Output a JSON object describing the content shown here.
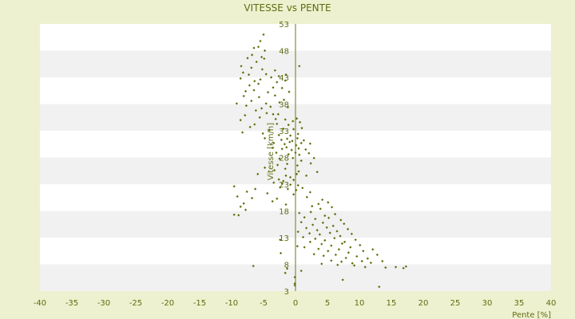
{
  "colors": {
    "page_background": "#eef1cf",
    "plot_band_light": "#ffffff",
    "plot_band_dark": "#f1f1f1",
    "text": "#5f6b12",
    "axis_line": "#6b7a10",
    "marker": "#5f6e0c"
  },
  "chart_data": {
    "type": "scatter",
    "title": "VITESSE vs PENTE",
    "xlabel": "Pente [%]",
    "ylabel": "Vitesse [km/h]",
    "xlim": [
      -40,
      40
    ],
    "ylim": [
      3,
      53
    ],
    "x_ticks": [
      -40,
      -35,
      -30,
      -25,
      -20,
      -15,
      -10,
      -5,
      0,
      5,
      10,
      15,
      20,
      25,
      30,
      35,
      40
    ],
    "y_ticks": [
      3,
      8,
      13,
      18,
      23,
      28,
      33,
      38,
      43,
      48,
      53
    ],
    "x_tick_labels": [
      "-40",
      "-35",
      "-30",
      "-25",
      "-20",
      "-15",
      "-10",
      "-5",
      "0",
      "5",
      "10",
      "15",
      "20",
      "25",
      "30",
      "35",
      "40"
    ],
    "y_tick_labels": [
      "3",
      "8",
      "13",
      "18",
      "23",
      "28",
      "33",
      "38",
      "43",
      "48",
      "53"
    ],
    "grid": "horizontal alternating bands",
    "legend": "none",
    "marker": "small diamond",
    "series": [
      {
        "points": [
          [
            -5,
            51
          ],
          [
            -5.5,
            49.8
          ],
          [
            -6.5,
            48.5
          ],
          [
            -5.8,
            48.7
          ],
          [
            -4.8,
            48
          ],
          [
            -6.8,
            47.2
          ],
          [
            -7.5,
            46.6
          ],
          [
            -5.3,
            46.8
          ],
          [
            -4.9,
            46.5
          ],
          [
            -6.1,
            45.9
          ],
          [
            -8.5,
            45.1
          ],
          [
            -6.9,
            44.8
          ],
          [
            -5.2,
            44.5
          ],
          [
            -3.2,
            44.3
          ],
          [
            0.6,
            45.1
          ],
          [
            -8.2,
            43.9
          ],
          [
            -7.3,
            43.5
          ],
          [
            -4.6,
            43.6
          ],
          [
            -3.8,
            43
          ],
          [
            -2.6,
            43.2
          ],
          [
            -1.5,
            43.5
          ],
          [
            -8.6,
            42.8
          ],
          [
            -6.4,
            42.3
          ],
          [
            -5.5,
            42.6
          ],
          [
            -2.9,
            42.1
          ],
          [
            -1.6,
            42.4
          ],
          [
            -7.2,
            41.5
          ],
          [
            -5.8,
            41.8
          ],
          [
            -3.5,
            41.1
          ],
          [
            -2.1,
            41
          ],
          [
            -7.8,
            40.4
          ],
          [
            -6.5,
            40.6
          ],
          [
            -4.3,
            40.2
          ],
          [
            -1,
            40.3
          ],
          [
            -8.1,
            39.5
          ],
          [
            -5.7,
            39.3
          ],
          [
            -3.2,
            39.6
          ],
          [
            -1.8,
            38.8
          ],
          [
            -6.9,
            38.6
          ],
          [
            -4.6,
            38.1
          ],
          [
            -2.5,
            38.3
          ],
          [
            -7.7,
            37.7
          ],
          [
            -5.3,
            37.2
          ],
          [
            -3.9,
            37.5
          ],
          [
            -1.2,
            37.4
          ],
          [
            -6.2,
            36.8
          ],
          [
            -4.5,
            36.3
          ],
          [
            -2.7,
            36.1
          ],
          [
            -7.9,
            35.9
          ],
          [
            -5.6,
            35.5
          ],
          [
            -3.1,
            35.2
          ],
          [
            -1.6,
            35.1
          ],
          [
            -8.6,
            35
          ],
          [
            -6.4,
            34.2
          ],
          [
            -2.9,
            34.3
          ],
          [
            -1.1,
            34.1
          ],
          [
            -0.4,
            34.8
          ],
          [
            0.2,
            35.3
          ],
          [
            0.7,
            34.6
          ],
          [
            -7.1,
            33.7
          ],
          [
            -4.1,
            33.1
          ],
          [
            -1.9,
            33.4
          ],
          [
            -0.3,
            33.3
          ],
          [
            1,
            33.5
          ],
          [
            -8.3,
            32.7
          ],
          [
            -5.1,
            32.5
          ],
          [
            -2.6,
            32.2
          ],
          [
            -0.8,
            32.1
          ],
          [
            0.4,
            32.4
          ],
          [
            -4.8,
            31.6
          ],
          [
            -2.2,
            31.3
          ],
          [
            -1.3,
            31.5
          ],
          [
            -0.5,
            31.1
          ],
          [
            0.3,
            31.6
          ],
          [
            1.3,
            31.2
          ],
          [
            -3.4,
            30.7
          ],
          [
            -1.7,
            30.5
          ],
          [
            -0.9,
            30.9
          ],
          [
            0.1,
            30.3
          ],
          [
            0.9,
            30.7
          ],
          [
            2.3,
            30.6
          ],
          [
            -3.6,
            29.8
          ],
          [
            -2.1,
            29.6
          ],
          [
            -1.4,
            29.9
          ],
          [
            -0.6,
            29.4
          ],
          [
            0.5,
            29.7
          ],
          [
            1.6,
            29.5
          ],
          [
            -3,
            28.9
          ],
          [
            -1.1,
            28.6
          ],
          [
            0,
            28.9
          ],
          [
            0.6,
            28.5
          ],
          [
            2.1,
            28.8
          ],
          [
            -2.5,
            27.8
          ],
          [
            -0.4,
            27.9
          ],
          [
            0.9,
            27.4
          ],
          [
            2.9,
            27.9
          ],
          [
            -2.8,
            26.6
          ],
          [
            -1.3,
            26.8
          ],
          [
            0.3,
            26.5
          ],
          [
            2.4,
            26.9
          ],
          [
            -3.3,
            25.6
          ],
          [
            -1.6,
            25.9
          ],
          [
            0.5,
            25.4
          ],
          [
            3.4,
            25.3
          ],
          [
            -5.9,
            24.9
          ],
          [
            -1.5,
            24.6
          ],
          [
            0.2,
            24.9
          ],
          [
            1.7,
            24.6
          ],
          [
            -2.6,
            23.9
          ],
          [
            -1.9,
            23.6
          ],
          [
            -0.3,
            23.8
          ],
          [
            -3.4,
            23.3
          ],
          [
            -2.1,
            23.1
          ],
          [
            -0.8,
            22.9
          ],
          [
            0.4,
            22.8
          ],
          [
            -9.6,
            22.6
          ],
          [
            -6.3,
            22.1
          ],
          [
            -2.4,
            22.4
          ],
          [
            -1.2,
            22.1
          ],
          [
            0.1,
            21.9
          ],
          [
            1.1,
            22.3
          ],
          [
            -7.6,
            21.6
          ],
          [
            -4.4,
            21.3
          ],
          [
            -0.3,
            21.1
          ],
          [
            2.3,
            21.5
          ],
          [
            -9.1,
            20.7
          ],
          [
            -6.8,
            20.4
          ],
          [
            -2.9,
            20.3
          ],
          [
            1.8,
            20.6
          ],
          [
            4.2,
            20.1
          ],
          [
            -8.1,
            19.4
          ],
          [
            -3.6,
            19.8
          ],
          [
            -1.5,
            19.2
          ],
          [
            3.6,
            19.3
          ],
          [
            5.1,
            19.6
          ],
          [
            -8.6,
            18.8
          ],
          [
            -7.8,
            18.2
          ],
          [
            2.6,
            18.9
          ],
          [
            3.9,
            18.4
          ],
          [
            5.7,
            18.7
          ],
          [
            -9.6,
            17.3
          ],
          [
            -8.9,
            17.2
          ],
          [
            0.6,
            17.6
          ],
          [
            2.4,
            17.8
          ],
          [
            4.6,
            17.1
          ],
          [
            6.2,
            17.4
          ],
          [
            1.4,
            16.8
          ],
          [
            3.1,
            16.5
          ],
          [
            5.2,
            16.7
          ],
          [
            7.1,
            16.3
          ],
          [
            0.9,
            15.9
          ],
          [
            2.7,
            15.4
          ],
          [
            4.3,
            15.8
          ],
          [
            5.9,
            15.2
          ],
          [
            7.6,
            15.6
          ],
          [
            1.7,
            14.8
          ],
          [
            3.4,
            14.4
          ],
          [
            4.9,
            14.9
          ],
          [
            6.5,
            14.2
          ],
          [
            8.2,
            14.6
          ],
          [
            0.4,
            14.1
          ],
          [
            2.2,
            13.8
          ],
          [
            3.8,
            13.6
          ],
          [
            5.4,
            13.9
          ],
          [
            7,
            13.3
          ],
          [
            8.8,
            13.7
          ],
          [
            1.2,
            13.1
          ],
          [
            3.1,
            12.8
          ],
          [
            4.6,
            12.5
          ],
          [
            6.1,
            12.9
          ],
          [
            7.7,
            12.2
          ],
          [
            9.4,
            12.6
          ],
          [
            2.3,
            12.2
          ],
          [
            4.1,
            11.8
          ],
          [
            5.6,
            11.5
          ],
          [
            7.3,
            11.9
          ],
          [
            8.6,
            11.2
          ],
          [
            10.1,
            11.6
          ],
          [
            1.4,
            11.2
          ],
          [
            3.6,
            10.9
          ],
          [
            5.1,
            10.5
          ],
          [
            6.8,
            10.8
          ],
          [
            8.3,
            10.2
          ],
          [
            10.6,
            10.5
          ],
          [
            12.1,
            10.8
          ],
          [
            2.9,
            9.9
          ],
          [
            4.4,
            9.6
          ],
          [
            6.3,
            9.8
          ],
          [
            7.9,
            9.2
          ],
          [
            9.6,
            9.5
          ],
          [
            11.3,
            9.1
          ],
          [
            12.8,
            9.8
          ],
          [
            5.6,
            8.7
          ],
          [
            7.2,
            8.5
          ],
          [
            8.9,
            8.2
          ],
          [
            10.4,
            8.6
          ],
          [
            11.8,
            8.3
          ],
          [
            13.6,
            8.6
          ],
          [
            4.1,
            8.1
          ],
          [
            6.6,
            7.9
          ],
          [
            9.2,
            7.8
          ],
          [
            10.9,
            7.5
          ],
          [
            14.1,
            7.4
          ],
          [
            15.7,
            7.5
          ],
          [
            17.3,
            7.6
          ],
          [
            -6.6,
            7.7
          ],
          [
            16.9,
            7.3
          ],
          [
            0.9,
            6.8
          ],
          [
            -1.6,
            6.4
          ],
          [
            -1.3,
            7.2
          ],
          [
            7.4,
            5.1
          ],
          [
            13.1,
            3.8
          ],
          [
            -0.1,
            5.6
          ],
          [
            -0.1,
            4.4
          ],
          [
            -0.1,
            4.1
          ],
          [
            -2.3,
            10.1
          ],
          [
            -2.4,
            12.6
          ],
          [
            0.3,
            11.4
          ],
          [
            -3.5,
            36.1
          ],
          [
            -4.8,
            26.1
          ],
          [
            -0.8,
            24.3
          ],
          [
            -9.2,
            38.1
          ]
        ]
      }
    ]
  }
}
